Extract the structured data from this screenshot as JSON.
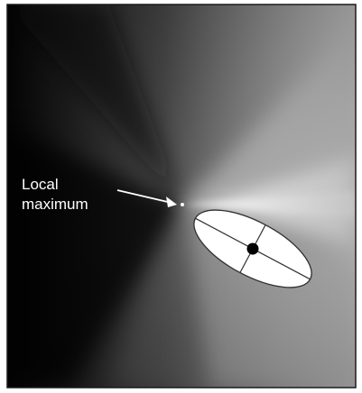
{
  "annotation": {
    "line1": "Local",
    "line2": "maximum"
  },
  "colors": {
    "background": "#ffffff",
    "border": "#1a1a1a",
    "field_dark": "#000000",
    "field_light": "#ffffff",
    "ellipse_fill": "#ffffff",
    "ellipse_stroke": "#303030",
    "marker": "#000000",
    "label_text": "#ffffff",
    "arrow": "#ffffff"
  }
}
